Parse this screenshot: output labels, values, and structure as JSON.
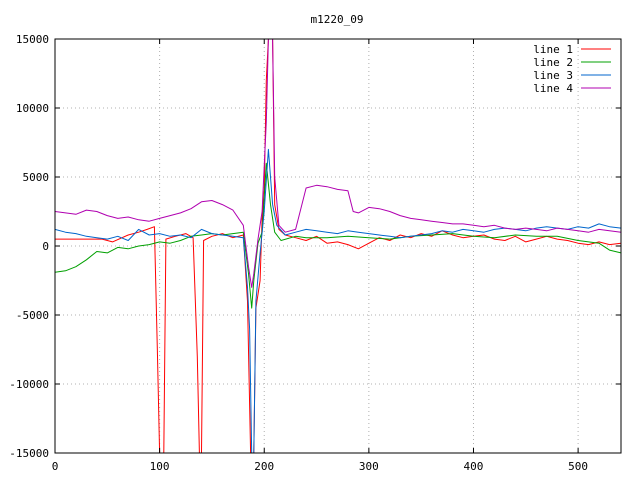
{
  "chart_data": {
    "type": "line",
    "title": "m1220_09",
    "xlabel": "",
    "ylabel": "",
    "xlim": [
      0,
      541
    ],
    "ylim": [
      -15000,
      15000
    ],
    "x_ticks": [
      0,
      100,
      200,
      300,
      400,
      500
    ],
    "x_tick_labels": [
      "0",
      "100",
      "200",
      "300",
      "400",
      "500"
    ],
    "y_ticks": [
      -15000,
      -10000,
      -5000,
      0,
      5000,
      10000,
      15000
    ],
    "y_tick_labels": [
      "-15000",
      "-10000",
      "-5000",
      "0",
      "5000",
      "10000",
      "15000"
    ],
    "grid": true,
    "legend_position": "top-right",
    "series": [
      {
        "name": "line 1",
        "color": "#ff0000",
        "points": [
          [
            0,
            500
          ],
          [
            45,
            500
          ],
          [
            55,
            300
          ],
          [
            70,
            800
          ],
          [
            80,
            1000
          ],
          [
            88,
            1200
          ],
          [
            95,
            1400
          ],
          [
            98,
            -8000
          ],
          [
            100,
            -15000
          ],
          [
            104,
            -15000
          ],
          [
            106,
            500
          ],
          [
            115,
            700
          ],
          [
            125,
            900
          ],
          [
            132,
            600
          ],
          [
            136,
            -8000
          ],
          [
            138,
            -15000
          ],
          [
            140,
            -15000
          ],
          [
            142,
            400
          ],
          [
            150,
            700
          ],
          [
            160,
            900
          ],
          [
            170,
            600
          ],
          [
            180,
            800
          ],
          [
            184,
            -4000
          ],
          [
            187,
            -15000
          ],
          [
            190,
            -15000
          ],
          [
            192,
            -4500
          ],
          [
            196,
            -2500
          ],
          [
            198,
            2000
          ],
          [
            200,
            4000
          ],
          [
            202,
            12000
          ],
          [
            204,
            15000
          ],
          [
            208,
            15000
          ],
          [
            210,
            3000
          ],
          [
            214,
            1200
          ],
          [
            220,
            800
          ],
          [
            230,
            600
          ],
          [
            240,
            400
          ],
          [
            250,
            700
          ],
          [
            260,
            200
          ],
          [
            270,
            300
          ],
          [
            280,
            100
          ],
          [
            290,
            -200
          ],
          [
            300,
            200
          ],
          [
            310,
            600
          ],
          [
            320,
            400
          ],
          [
            330,
            800
          ],
          [
            340,
            600
          ],
          [
            350,
            900
          ],
          [
            360,
            700
          ],
          [
            370,
            1100
          ],
          [
            380,
            800
          ],
          [
            390,
            600
          ],
          [
            400,
            700
          ],
          [
            410,
            800
          ],
          [
            420,
            500
          ],
          [
            430,
            400
          ],
          [
            440,
            700
          ],
          [
            450,
            300
          ],
          [
            460,
            500
          ],
          [
            470,
            700
          ],
          [
            480,
            500
          ],
          [
            490,
            400
          ],
          [
            500,
            200
          ],
          [
            510,
            100
          ],
          [
            520,
            300
          ],
          [
            530,
            100
          ],
          [
            541,
            200
          ]
        ]
      },
      {
        "name": "line 2",
        "color": "#00a000",
        "points": [
          [
            0,
            -1900
          ],
          [
            10,
            -1800
          ],
          [
            20,
            -1500
          ],
          [
            30,
            -1000
          ],
          [
            40,
            -400
          ],
          [
            50,
            -500
          ],
          [
            60,
            -100
          ],
          [
            70,
            -200
          ],
          [
            80,
            0
          ],
          [
            90,
            100
          ],
          [
            100,
            300
          ],
          [
            110,
            200
          ],
          [
            120,
            400
          ],
          [
            130,
            700
          ],
          [
            140,
            800
          ],
          [
            150,
            900
          ],
          [
            160,
            800
          ],
          [
            170,
            900
          ],
          [
            180,
            1000
          ],
          [
            185,
            -2000
          ],
          [
            188,
            -4500
          ],
          [
            190,
            -2500
          ],
          [
            194,
            200
          ],
          [
            198,
            1000
          ],
          [
            202,
            6000
          ],
          [
            206,
            3000
          ],
          [
            210,
            1000
          ],
          [
            216,
            400
          ],
          [
            230,
            700
          ],
          [
            240,
            600
          ],
          [
            260,
            600
          ],
          [
            280,
            700
          ],
          [
            300,
            600
          ],
          [
            320,
            500
          ],
          [
            340,
            700
          ],
          [
            360,
            800
          ],
          [
            380,
            900
          ],
          [
            400,
            700
          ],
          [
            420,
            600
          ],
          [
            440,
            800
          ],
          [
            460,
            700
          ],
          [
            480,
            700
          ],
          [
            500,
            400
          ],
          [
            510,
            300
          ],
          [
            520,
            200
          ],
          [
            530,
            -300
          ],
          [
            541,
            -500
          ]
        ]
      },
      {
        "name": "line 3",
        "color": "#0066cc",
        "points": [
          [
            0,
            1200
          ],
          [
            10,
            1000
          ],
          [
            20,
            900
          ],
          [
            30,
            700
          ],
          [
            40,
            600
          ],
          [
            50,
            500
          ],
          [
            60,
            700
          ],
          [
            70,
            400
          ],
          [
            80,
            1200
          ],
          [
            90,
            800
          ],
          [
            100,
            900
          ],
          [
            110,
            700
          ],
          [
            120,
            800
          ],
          [
            130,
            600
          ],
          [
            140,
            1200
          ],
          [
            150,
            900
          ],
          [
            160,
            800
          ],
          [
            170,
            700
          ],
          [
            180,
            600
          ],
          [
            184,
            -3000
          ],
          [
            186,
            -6000
          ],
          [
            188,
            -15000
          ],
          [
            190,
            -15000
          ],
          [
            192,
            -4000
          ],
          [
            196,
            -500
          ],
          [
            200,
            2500
          ],
          [
            204,
            7000
          ],
          [
            208,
            3000
          ],
          [
            212,
            1500
          ],
          [
            220,
            800
          ],
          [
            230,
            1000
          ],
          [
            240,
            1200
          ],
          [
            250,
            1100
          ],
          [
            260,
            1000
          ],
          [
            270,
            900
          ],
          [
            280,
            1100
          ],
          [
            290,
            1000
          ],
          [
            300,
            900
          ],
          [
            310,
            800
          ],
          [
            320,
            700
          ],
          [
            330,
            600
          ],
          [
            340,
            700
          ],
          [
            350,
            800
          ],
          [
            360,
            900
          ],
          [
            370,
            1100
          ],
          [
            380,
            1000
          ],
          [
            390,
            1200
          ],
          [
            400,
            1100
          ],
          [
            410,
            1000
          ],
          [
            420,
            1200
          ],
          [
            430,
            1300
          ],
          [
            440,
            1200
          ],
          [
            450,
            1100
          ],
          [
            460,
            1300
          ],
          [
            470,
            1400
          ],
          [
            480,
            1300
          ],
          [
            490,
            1200
          ],
          [
            500,
            1400
          ],
          [
            510,
            1300
          ],
          [
            520,
            1600
          ],
          [
            530,
            1400
          ],
          [
            541,
            1300
          ]
        ]
      },
      {
        "name": "line 4",
        "color": "#b000b0",
        "points": [
          [
            0,
            2500
          ],
          [
            10,
            2400
          ],
          [
            20,
            2300
          ],
          [
            30,
            2600
          ],
          [
            40,
            2500
          ],
          [
            50,
            2200
          ],
          [
            60,
            2000
          ],
          [
            70,
            2100
          ],
          [
            80,
            1900
          ],
          [
            90,
            1800
          ],
          [
            100,
            2000
          ],
          [
            110,
            2200
          ],
          [
            120,
            2400
          ],
          [
            130,
            2700
          ],
          [
            140,
            3200
          ],
          [
            150,
            3300
          ],
          [
            160,
            3000
          ],
          [
            170,
            2600
          ],
          [
            180,
            1500
          ],
          [
            185,
            -1500
          ],
          [
            188,
            -3000
          ],
          [
            190,
            -2000
          ],
          [
            194,
            500
          ],
          [
            198,
            2500
          ],
          [
            202,
            9000
          ],
          [
            204,
            15000
          ],
          [
            208,
            15000
          ],
          [
            210,
            5000
          ],
          [
            214,
            1500
          ],
          [
            220,
            1000
          ],
          [
            230,
            1200
          ],
          [
            240,
            4200
          ],
          [
            250,
            4400
          ],
          [
            260,
            4300
          ],
          [
            270,
            4100
          ],
          [
            280,
            4000
          ],
          [
            285,
            2500
          ],
          [
            290,
            2400
          ],
          [
            300,
            2800
          ],
          [
            310,
            2700
          ],
          [
            320,
            2500
          ],
          [
            330,
            2200
          ],
          [
            340,
            2000
          ],
          [
            350,
            1900
          ],
          [
            360,
            1800
          ],
          [
            370,
            1700
          ],
          [
            380,
            1600
          ],
          [
            390,
            1600
          ],
          [
            400,
            1500
          ],
          [
            410,
            1400
          ],
          [
            420,
            1500
          ],
          [
            430,
            1300
          ],
          [
            440,
            1200
          ],
          [
            450,
            1300
          ],
          [
            460,
            1200
          ],
          [
            470,
            1100
          ],
          [
            480,
            1300
          ],
          [
            490,
            1200
          ],
          [
            500,
            1100
          ],
          [
            510,
            1000
          ],
          [
            520,
            1200
          ],
          [
            530,
            1100
          ],
          [
            541,
            1000
          ]
        ]
      }
    ]
  }
}
